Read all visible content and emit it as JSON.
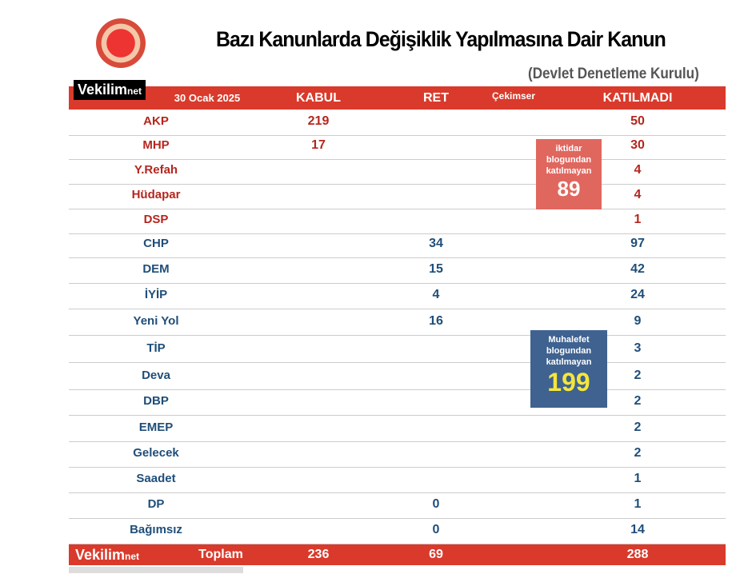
{
  "header": {
    "title": "Bazı Kanunlarda Değişiklik Yapılmasına Dair Kanun",
    "subtitle": "(Devlet Denetleme Kurulu)",
    "brand": "Vekilim",
    "brand_suffix": "net",
    "date": "30 Ocak 2025"
  },
  "columns": {
    "kabul": "KABUL",
    "ret": "RET",
    "cekimser": "Çekimser",
    "katilmadi": "KATILMADI"
  },
  "rows": [
    {
      "party": "AKP",
      "kabul": "219",
      "ret": "",
      "katilmadi": "50",
      "bloc": "iktidar"
    },
    {
      "party": "MHP",
      "kabul": "17",
      "ret": "",
      "katilmadi": "30",
      "bloc": "iktidar"
    },
    {
      "party": "Y.Refah",
      "kabul": "",
      "ret": "",
      "katilmadi": "4",
      "bloc": "iktidar"
    },
    {
      "party": "Hüdapar",
      "kabul": "",
      "ret": "",
      "katilmadi": "4",
      "bloc": "iktidar"
    },
    {
      "party": "DSP",
      "kabul": "",
      "ret": "",
      "katilmadi": "1",
      "bloc": "iktidar"
    },
    {
      "party": "CHP",
      "kabul": "",
      "ret": "34",
      "katilmadi": "97",
      "bloc": "muhalefet"
    },
    {
      "party": "DEM",
      "kabul": "",
      "ret": "15",
      "katilmadi": "42",
      "bloc": "muhalefet"
    },
    {
      "party": "İYİP",
      "kabul": "",
      "ret": "4",
      "katilmadi": "24",
      "bloc": "muhalefet"
    },
    {
      "party": "Yeni Yol",
      "kabul": "",
      "ret": "16",
      "katilmadi": "9",
      "bloc": "muhalefet"
    },
    {
      "party": "TİP",
      "kabul": "",
      "ret": "",
      "katilmadi": "3",
      "bloc": "muhalefet"
    },
    {
      "party": "Deva",
      "kabul": "",
      "ret": "",
      "katilmadi": "2",
      "bloc": "muhalefet"
    },
    {
      "party": "DBP",
      "kabul": "",
      "ret": "",
      "katilmadi": "2",
      "bloc": "muhalefet"
    },
    {
      "party": "EMEP",
      "kabul": "",
      "ret": "",
      "katilmadi": "2",
      "bloc": "muhalefet"
    },
    {
      "party": "Gelecek",
      "kabul": "",
      "ret": "",
      "katilmadi": "2",
      "bloc": "muhalefet"
    },
    {
      "party": "Saadet",
      "kabul": "",
      "ret": "",
      "katilmadi": "1",
      "bloc": "muhalefet"
    },
    {
      "party": "DP",
      "kabul": "",
      "ret": "0",
      "katilmadi": "1",
      "bloc": "muhalefet"
    },
    {
      "party": "Bağımsız",
      "kabul": "",
      "ret": "0",
      "katilmadi": "14",
      "bloc": "muhalefet"
    }
  ],
  "footer": {
    "label": "Toplam",
    "kabul": "236",
    "ret": "69",
    "katilmadi": "288"
  },
  "iktidar_box": {
    "lines": [
      "iktidar",
      "blogundan",
      "katılmayan"
    ],
    "value": "89"
  },
  "muhalefet_box": {
    "lines": [
      "Muhalefet",
      "blogundan",
      "katılmayan"
    ],
    "value": "199"
  },
  "colors": {
    "bar": "#d93a2b",
    "iktidar": "#b5261e",
    "muhalefet": "#1f4e79",
    "highlight": "#f5e63c"
  }
}
